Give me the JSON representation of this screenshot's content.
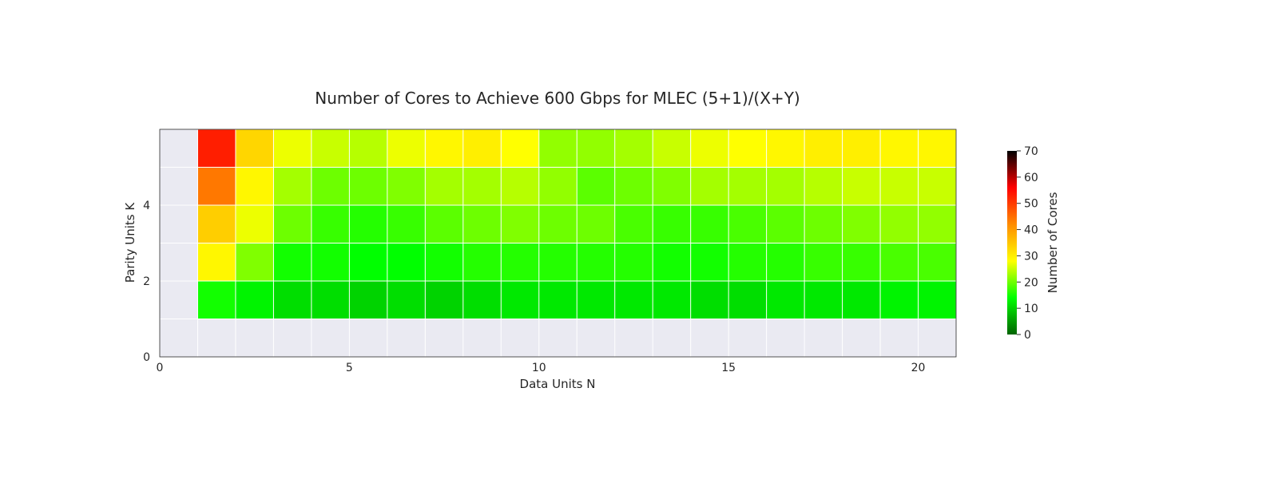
{
  "chart_data": {
    "type": "heatmap",
    "title": "Number of Cores to Achieve 600 Gbps for MLEC (5+1)/(X+Y)",
    "xlabel": "Data Units N",
    "ylabel": "Parity Units K",
    "xlim": [
      0,
      21
    ],
    "ylim": [
      0,
      6
    ],
    "x_ticks": [
      "0",
      "5",
      "10",
      "15",
      "20"
    ],
    "y_ticks": [
      "0",
      "2",
      "4"
    ],
    "x_cells": [
      1,
      2,
      3,
      4,
      5,
      6,
      7,
      8,
      9,
      10,
      11,
      12,
      13,
      14,
      15,
      16,
      17,
      18,
      19,
      20
    ],
    "y_cells": [
      1,
      2,
      3,
      4,
      5
    ],
    "values": [
      [
        15,
        13,
        11,
        11,
        10,
        11,
        10,
        11,
        12,
        12,
        12,
        12,
        12,
        11,
        11,
        12,
        12,
        12,
        13,
        13
      ],
      [
        29,
        21,
        15,
        15,
        14,
        14,
        15,
        16,
        16,
        16,
        16,
        16,
        15,
        15,
        16,
        16,
        17,
        17,
        18,
        18
      ],
      [
        34,
        27,
        20,
        17,
        16,
        17,
        19,
        20,
        21,
        20,
        20,
        18,
        17,
        17,
        18,
        19,
        20,
        21,
        22,
        22
      ],
      [
        44,
        29,
        23,
        20,
        20,
        21,
        23,
        23,
        24,
        22,
        19,
        20,
        21,
        23,
        23,
        23,
        24,
        25,
        25,
        25
      ],
      [
        53,
        33,
        27,
        25,
        24,
        27,
        29,
        30,
        28,
        22,
        22,
        23,
        25,
        27,
        28,
        29,
        30,
        30,
        29,
        29
      ]
    ],
    "colorbar": {
      "label": "Number of Cores",
      "min": 0,
      "max": 70,
      "ticks": [
        "0",
        "10",
        "20",
        "30",
        "40",
        "50",
        "60",
        "70"
      ],
      "colors": [
        "#006400",
        "#00ff00",
        "#ffff00",
        "#ff8c00",
        "#ff0000",
        "#000000"
      ]
    },
    "background_color": "#eaeaf2",
    "grid": true
  }
}
